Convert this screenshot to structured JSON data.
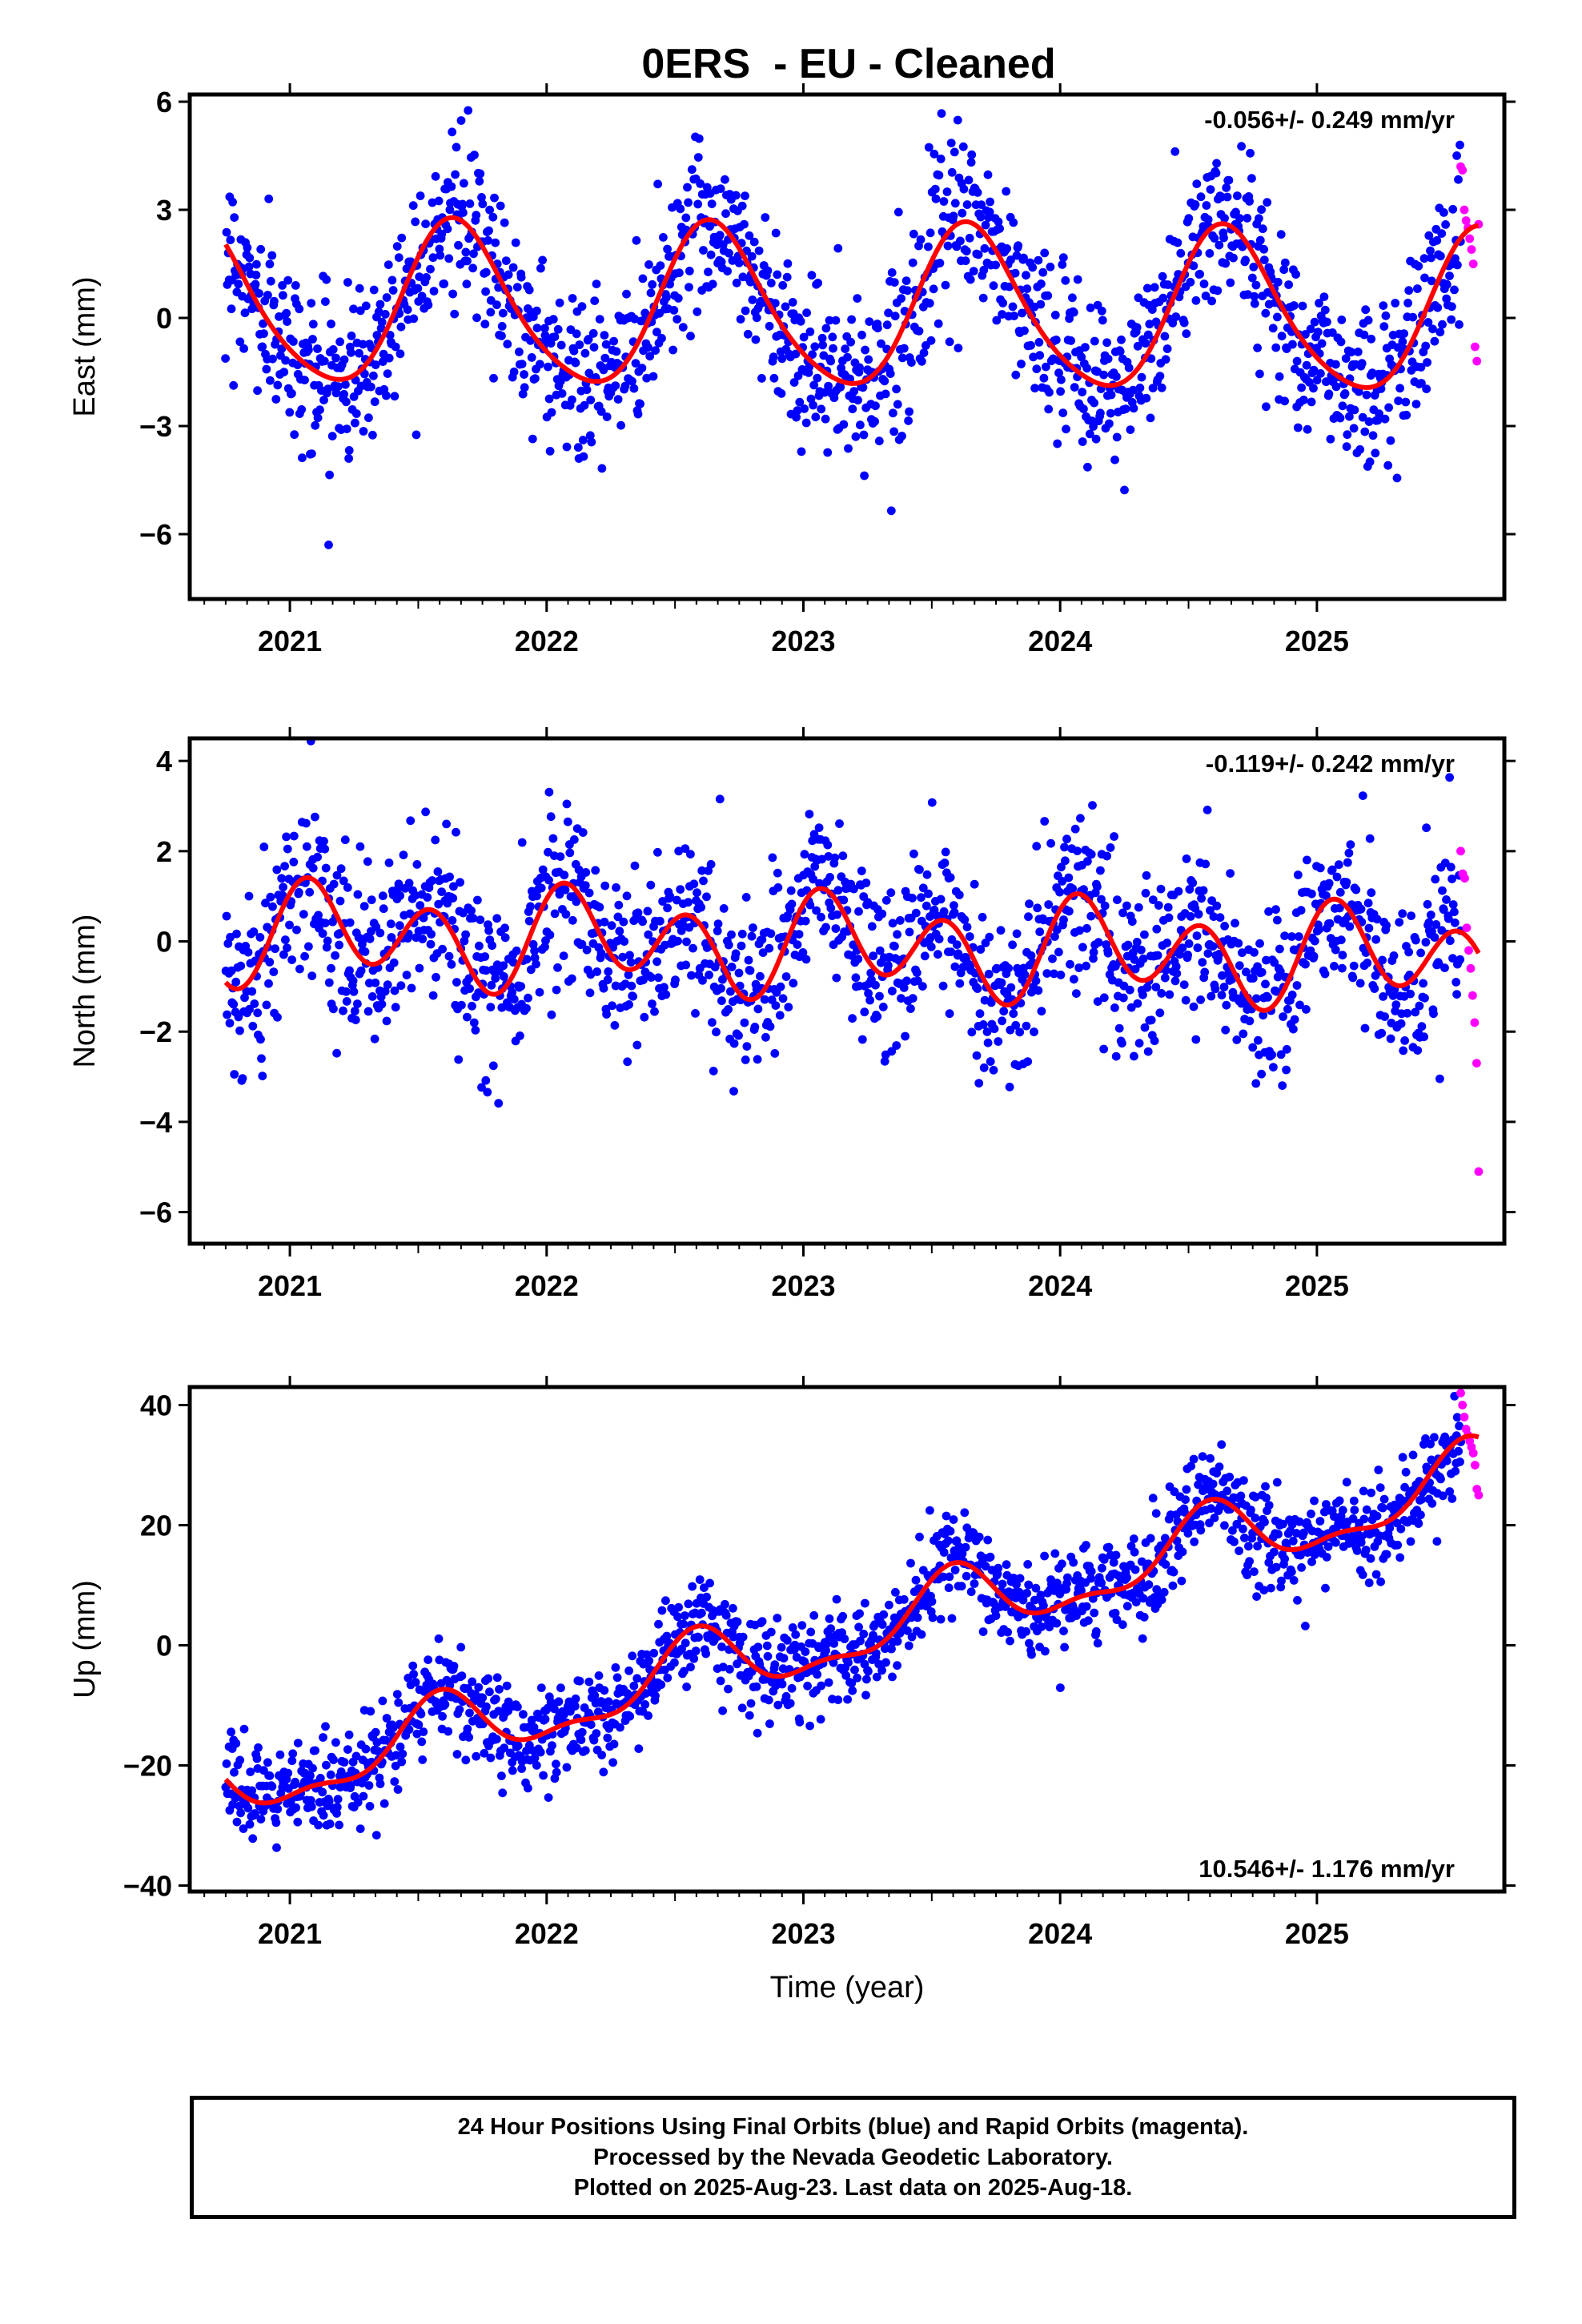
{
  "title": "0ERS  - EU - Cleaned",
  "footer": {
    "line1": "24 Hour Positions Using Final Orbits (blue) and Rapid Orbits (magenta).",
    "line2": "Processed by the Nevada Geodetic Laboratory.",
    "line3": "Plotted on 2025-Aug-23. Last data on 2025-Aug-18."
  },
  "colors": {
    "final": "#0000ff",
    "rapid": "#ff00ff",
    "fit": "#ff0000",
    "axis": "#000000"
  },
  "chart_data": [
    {
      "type": "scatter",
      "panel": "east",
      "ylabel": "East (mm)",
      "xlabel": "",
      "xlim": [
        2020.61,
        2025.73
      ],
      "ylim": [
        -7.8,
        6.2
      ],
      "yticks": [
        6,
        3,
        0,
        -3,
        -6
      ],
      "ytick_labels": [
        "6",
        "3",
        "0",
        "−3",
        "−6"
      ],
      "xticks": [
        2021,
        2022,
        2023,
        2024,
        2025
      ],
      "xtick_labels": [
        "2021",
        "2022",
        "2023",
        "2024",
        "2025"
      ],
      "rate_label": "-0.056+/- 0.249 mm/yr",
      "rate_position": "top-right",
      "series": [
        {
          "name": "Final Orbits (blue)",
          "x_range": [
            2020.75,
            2025.56
          ],
          "model": {
            "offset": 0.2,
            "rate": -0.056,
            "sin1": -1.8,
            "cos1": -1.3,
            "sin2": 0.3,
            "cos2": 0.1,
            "ref": 2023.2
          },
          "scatter_sd": 1.15,
          "count": 1550
        },
        {
          "name": "Rapid Orbits (magenta)",
          "x_range": [
            2025.56,
            2025.63
          ],
          "values": [
            4.2,
            4.1,
            3.0,
            2.7,
            2.5,
            2.2,
            1.9,
            1.5,
            -0.8,
            -1.2,
            2.6
          ],
          "count": 11
        }
      ]
    },
    {
      "type": "scatter",
      "panel": "north",
      "ylabel": "North (mm)",
      "xlabel": "",
      "xlim": [
        2020.61,
        2025.73
      ],
      "ylim": [
        -6.7,
        4.5
      ],
      "yticks": [
        4,
        2,
        0,
        -2,
        -4,
        -6
      ],
      "ytick_labels": [
        "4",
        "2",
        "0",
        "−2",
        "−4",
        "−6"
      ],
      "xticks": [
        2021,
        2022,
        2023,
        2024,
        2025
      ],
      "xtick_labels": [
        "2021",
        "2022",
        "2023",
        "2024",
        "2025"
      ],
      "rate_label": "-0.119+/- 0.242 mm/yr",
      "rate_position": "top-right",
      "series": [
        {
          "name": "Final Orbits (blue)",
          "x_range": [
            2020.75,
            2025.56
          ],
          "model": {
            "offset": -0.1,
            "rate": -0.119,
            "sin1": 0.4,
            "cos1": 0.2,
            "sin2": 0.6,
            "cos2": 0.7,
            "ref": 2023.2
          },
          "scatter_sd": 0.95,
          "count": 1550
        },
        {
          "name": "Rapid Orbits (magenta)",
          "x_range": [
            2025.56,
            2025.63
          ],
          "values": [
            2.0,
            1.5,
            1.4,
            0.3,
            -0.2,
            -0.6,
            -1.2,
            -1.8,
            -2.7,
            -5.1
          ],
          "count": 10
        }
      ]
    },
    {
      "type": "scatter",
      "panel": "up",
      "ylabel": "Up (mm)",
      "xlabel": "Time (year)",
      "xlim": [
        2020.61,
        2025.73
      ],
      "ylim": [
        -41,
        43
      ],
      "yticks": [
        40,
        20,
        0,
        -20,
        -40
      ],
      "ytick_labels": [
        "40",
        "20",
        "0",
        "−20",
        "−40"
      ],
      "xticks": [
        2021,
        2022,
        2023,
        2024,
        2025
      ],
      "xtick_labels": [
        "2021",
        "2022",
        "2023",
        "2024",
        "2025"
      ],
      "rate_label": "10.546+/- 1.176 mm/yr",
      "rate_position": "bottom-right",
      "series": [
        {
          "name": "Final Orbits (blue)",
          "x_range": [
            2020.75,
            2025.56
          ],
          "model": {
            "offset": 2.0,
            "rate": 10.546,
            "sin1": -2.5,
            "cos1": -4.8,
            "sin2": 2.0,
            "cos2": 1.0,
            "ref": 2023.2
          },
          "scatter_sd": 4.0,
          "count": 1550
        },
        {
          "name": "Rapid Orbits (magenta)",
          "x_range": [
            2025.56,
            2025.63
          ],
          "values": [
            42,
            40,
            38,
            36,
            35,
            34,
            33,
            32,
            30,
            26,
            25
          ],
          "count": 11
        }
      ]
    }
  ]
}
